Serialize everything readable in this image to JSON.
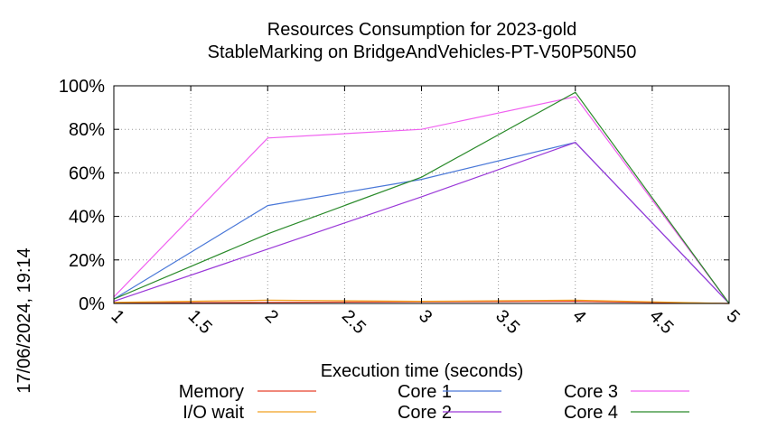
{
  "chart_data": {
    "type": "line",
    "title_line1": "Resources Consumption for 2023-gold",
    "title_line2": "StableMarking on BridgeAndVehicles-PT-V50P50N50",
    "xlabel": "Execution time (seconds)",
    "ylabel": "",
    "side_label": "17/06/2024, 19:14",
    "xlim": [
      1,
      5
    ],
    "ylim": [
      0,
      100
    ],
    "x_ticks": [
      {
        "value": 1,
        "label": "1"
      },
      {
        "value": 1.5,
        "label": "1.5"
      },
      {
        "value": 2,
        "label": "2"
      },
      {
        "value": 2.5,
        "label": "2.5"
      },
      {
        "value": 3,
        "label": "3"
      },
      {
        "value": 3.5,
        "label": "3.5"
      },
      {
        "value": 4,
        "label": "4"
      },
      {
        "value": 4.5,
        "label": "4.5"
      },
      {
        "value": 5,
        "label": "5"
      }
    ],
    "y_ticks": [
      {
        "value": 0,
        "label": "0%"
      },
      {
        "value": 20,
        "label": "20%"
      },
      {
        "value": 40,
        "label": "40%"
      },
      {
        "value": 60,
        "label": "60%"
      },
      {
        "value": 80,
        "label": "80%"
      },
      {
        "value": 100,
        "label": "100%"
      }
    ],
    "grid": true,
    "legend_placement": "bottom",
    "series": [
      {
        "name": "Memory",
        "color": "#e8402a",
        "x": [
          1,
          2,
          3,
          4,
          5
        ],
        "y": [
          0.2,
          0.5,
          0.8,
          1.0,
          0
        ]
      },
      {
        "name": "I/O wait",
        "color": "#f0a020",
        "x": [
          1,
          2,
          3,
          4,
          5
        ],
        "y": [
          0.5,
          1.5,
          1.0,
          1.5,
          0
        ]
      },
      {
        "name": "Core 1",
        "color": "#4a78d8",
        "x": [
          1,
          2,
          3,
          4,
          5
        ],
        "y": [
          2,
          45,
          57,
          74,
          0
        ]
      },
      {
        "name": "Core 2",
        "color": "#9a38d8",
        "x": [
          1,
          2,
          3,
          4,
          5
        ],
        "y": [
          1,
          25,
          49,
          74,
          0
        ]
      },
      {
        "name": "Core 3",
        "color": "#f060f0",
        "x": [
          1,
          2,
          3,
          4,
          5
        ],
        "y": [
          3,
          76,
          80,
          95,
          0
        ]
      },
      {
        "name": "Core 4",
        "color": "#2a8a2a",
        "x": [
          1,
          2,
          3,
          4,
          5
        ],
        "y": [
          2,
          32,
          58,
          97,
          0
        ]
      }
    ]
  }
}
